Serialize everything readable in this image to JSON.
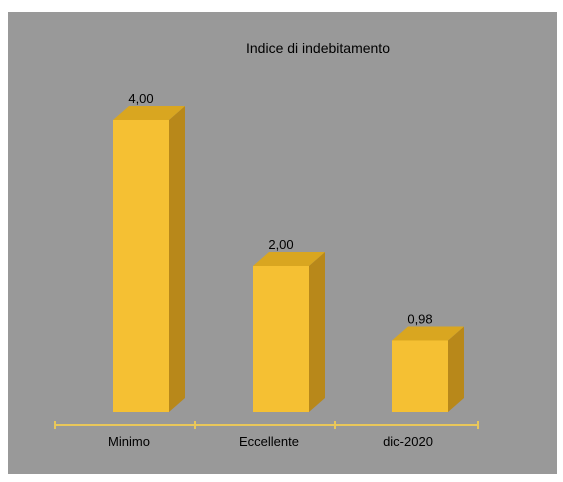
{
  "chart_data": {
    "type": "bar",
    "title": "Indice di indebitamento",
    "categories": [
      "Minimo",
      "Eccellente",
      "dic-2020"
    ],
    "values": [
      4.0,
      2.0,
      0.98
    ],
    "value_labels": [
      "4,00",
      "2,00",
      "0,98"
    ],
    "xlabel": "",
    "ylabel": "",
    "ylim": [
      0,
      4.0
    ],
    "grid": false,
    "legend": "none",
    "colors": {
      "background": "#999999",
      "bar_front": "#F5C033",
      "bar_top": "#D9A620",
      "bar_side": "#B8881A",
      "axis": "#E9C75A"
    }
  }
}
